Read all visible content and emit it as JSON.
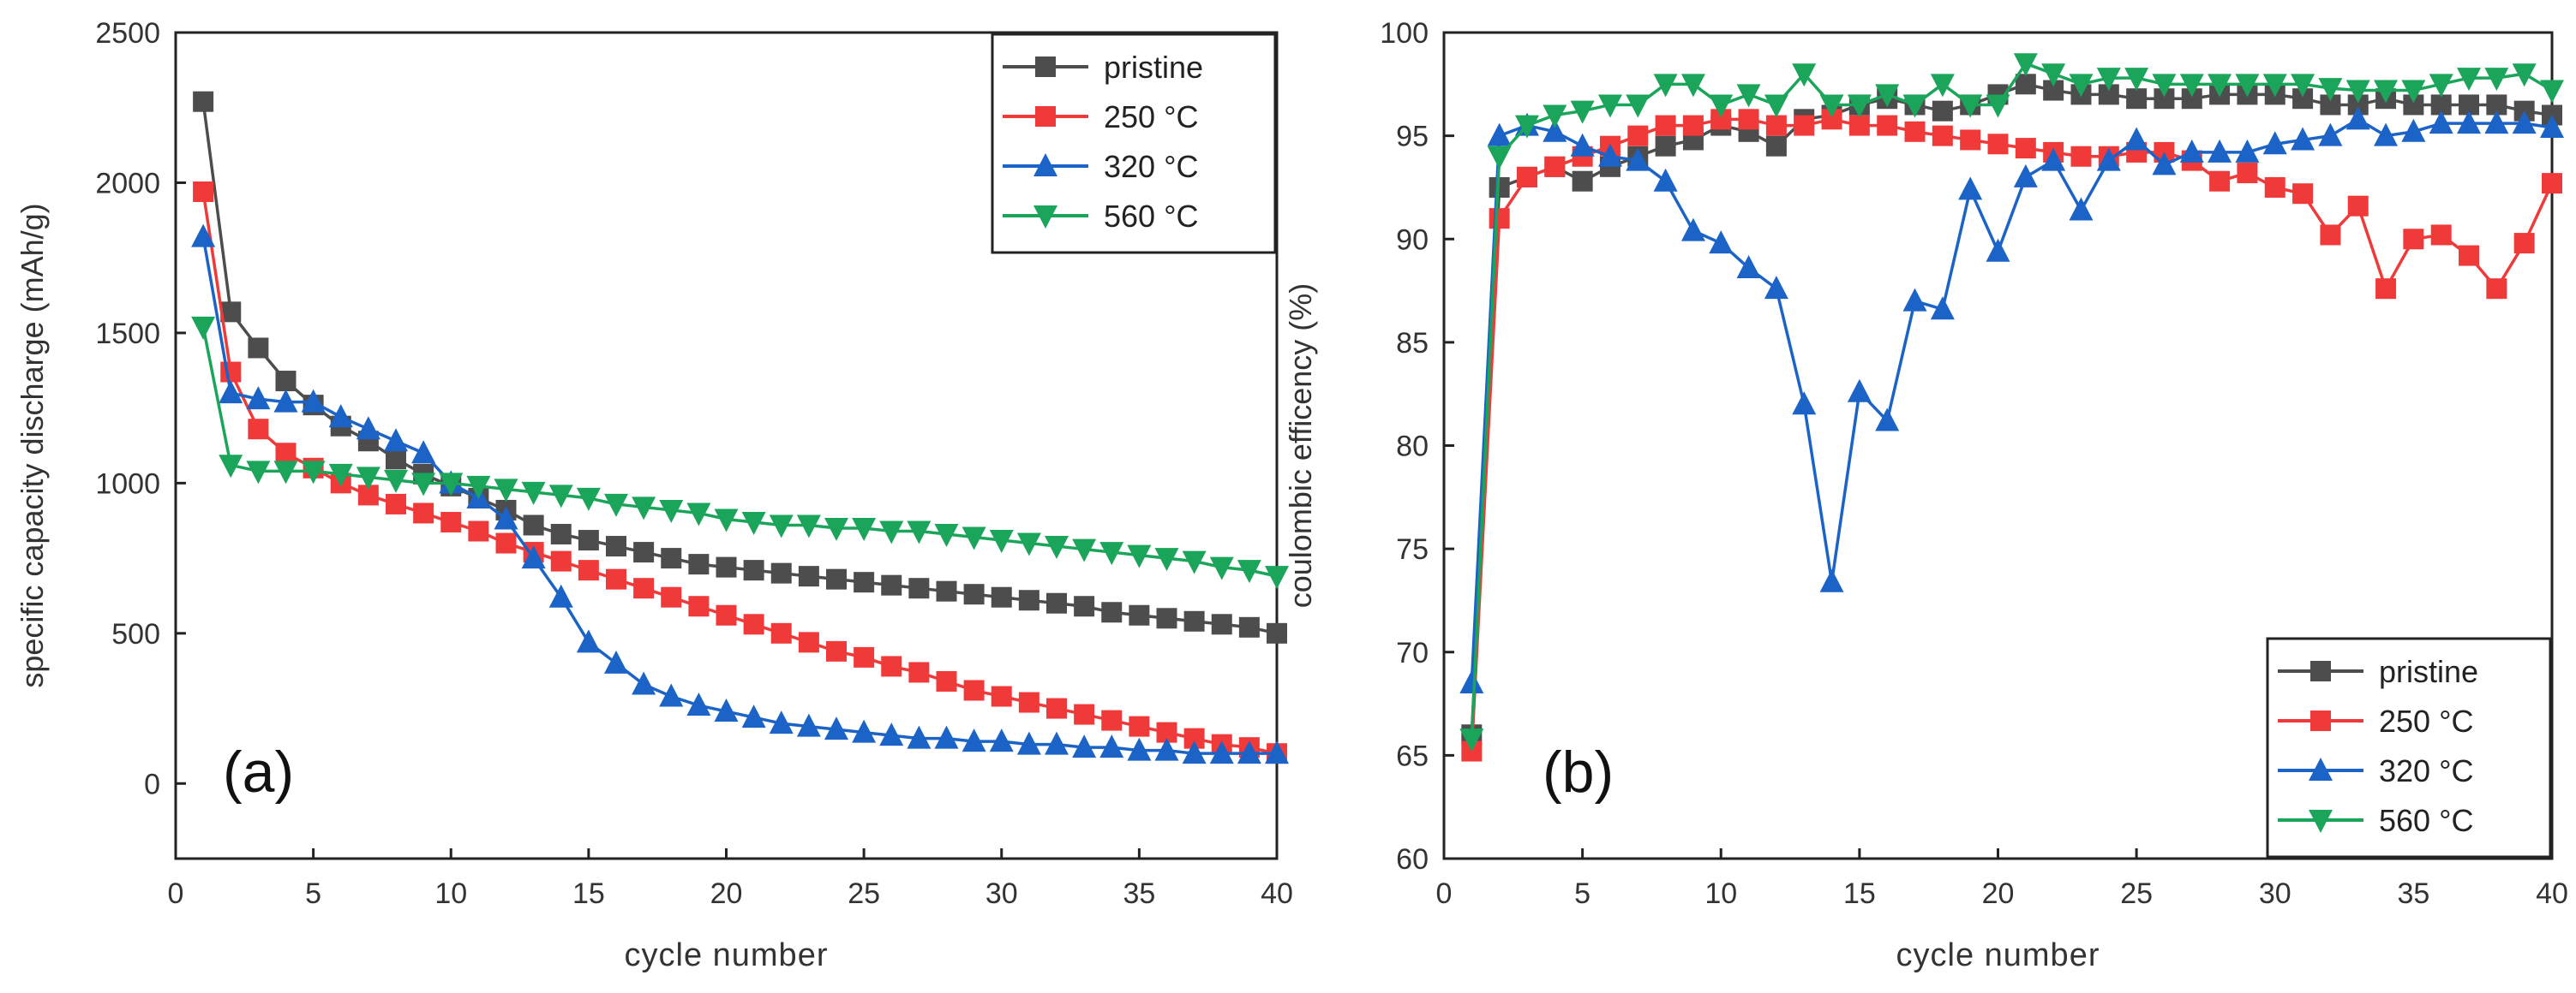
{
  "colors": {
    "pristine": "#4d4d4d",
    "c250": "#f03a3a",
    "c320": "#1c63c8",
    "c560": "#1aa55a",
    "axis": "#222222"
  },
  "chart_data": [
    {
      "type": "line",
      "panel_label": "(a)",
      "xlabel": "cycle number",
      "ylabel": "specific capacity discharge (mAh/g)",
      "xlim": [
        0,
        40
      ],
      "ylim": [
        -250,
        2500
      ],
      "xticks": [
        0,
        5,
        10,
        15,
        20,
        25,
        30,
        35,
        40
      ],
      "yticks": [
        0,
        500,
        1000,
        1500,
        2000,
        2500
      ],
      "legend_position": "top-right",
      "x": [
        1,
        2,
        3,
        4,
        5,
        6,
        7,
        8,
        9,
        10,
        11,
        12,
        13,
        14,
        15,
        16,
        17,
        18,
        19,
        20,
        21,
        22,
        23,
        24,
        25,
        26,
        27,
        28,
        29,
        30,
        31,
        32,
        33,
        34,
        35,
        36,
        37,
        38,
        39,
        40
      ],
      "series": [
        {
          "name": "pristine",
          "marker": "square",
          "color_key": "pristine",
          "values": [
            2270,
            1570,
            1450,
            1340,
            1260,
            1190,
            1140,
            1080,
            1030,
            990,
            950,
            910,
            860,
            830,
            810,
            790,
            770,
            750,
            730,
            720,
            710,
            700,
            690,
            680,
            670,
            660,
            650,
            640,
            630,
            620,
            610,
            600,
            590,
            570,
            560,
            550,
            540,
            530,
            520,
            500
          ]
        },
        {
          "name": "250 °C",
          "marker": "square",
          "color_key": "c250",
          "values": [
            1970,
            1370,
            1180,
            1100,
            1050,
            1000,
            960,
            930,
            900,
            870,
            840,
            800,
            770,
            740,
            710,
            680,
            650,
            620,
            590,
            560,
            530,
            500,
            470,
            440,
            420,
            390,
            370,
            340,
            310,
            290,
            270,
            250,
            230,
            210,
            190,
            170,
            150,
            130,
            120,
            100
          ]
        },
        {
          "name": "320 °C",
          "marker": "triangle-up",
          "color_key": "c320",
          "values": [
            1820,
            1300,
            1280,
            1270,
            1270,
            1220,
            1180,
            1140,
            1100,
            1000,
            950,
            880,
            750,
            620,
            470,
            400,
            330,
            290,
            260,
            240,
            220,
            200,
            190,
            180,
            170,
            160,
            150,
            150,
            140,
            140,
            130,
            130,
            120,
            120,
            110,
            110,
            100,
            100,
            100,
            100
          ]
        },
        {
          "name": "560 °C",
          "marker": "triangle-down",
          "color_key": "c560",
          "values": [
            1520,
            1060,
            1040,
            1040,
            1040,
            1030,
            1020,
            1010,
            1000,
            1000,
            990,
            980,
            970,
            960,
            950,
            930,
            920,
            910,
            900,
            880,
            870,
            860,
            860,
            850,
            850,
            840,
            840,
            830,
            820,
            810,
            800,
            790,
            780,
            770,
            760,
            750,
            740,
            720,
            710,
            690
          ]
        }
      ]
    },
    {
      "type": "line",
      "panel_label": "(b)",
      "xlabel": "cycle number",
      "ylabel": "coulombic efficency (%)",
      "xlim": [
        0,
        40
      ],
      "ylim": [
        60,
        100
      ],
      "xticks": [
        0,
        5,
        10,
        15,
        20,
        25,
        30,
        35,
        40
      ],
      "yticks": [
        60,
        65,
        70,
        75,
        80,
        85,
        90,
        95,
        100
      ],
      "legend_position": "bottom-right",
      "x": [
        1,
        2,
        3,
        4,
        5,
        6,
        7,
        8,
        9,
        10,
        11,
        12,
        13,
        14,
        15,
        16,
        17,
        18,
        19,
        20,
        21,
        22,
        23,
        24,
        25,
        26,
        27,
        28,
        29,
        30,
        31,
        32,
        33,
        34,
        35,
        36,
        37,
        38,
        39,
        40
      ],
      "series": [
        {
          "name": "pristine",
          "marker": "square",
          "color_key": "pristine",
          "values": [
            66,
            92.5,
            93,
            93.5,
            92.8,
            93.5,
            94,
            94.5,
            94.8,
            95.5,
            95.2,
            94.5,
            95.8,
            96,
            96.5,
            96.8,
            96.5,
            96.2,
            96.5,
            97,
            97.5,
            97.2,
            97,
            97,
            96.8,
            96.8,
            96.8,
            97,
            97,
            97,
            96.8,
            96.5,
            96.5,
            96.8,
            96.5,
            96.5,
            96.5,
            96.5,
            96.2,
            96
          ]
        },
        {
          "name": "250 °C",
          "marker": "square",
          "color_key": "c250",
          "values": [
            65.2,
            91,
            93,
            93.5,
            94,
            94.5,
            95,
            95.5,
            95.5,
            95.8,
            95.8,
            95.5,
            95.5,
            95.8,
            95.5,
            95.5,
            95.2,
            95,
            94.8,
            94.6,
            94.4,
            94.2,
            94,
            94,
            94.2,
            94.2,
            93.8,
            92.8,
            93.2,
            92.5,
            92.2,
            90.2,
            91.6,
            87.6,
            90,
            90.2,
            89.2,
            87.6,
            89.8,
            92.7
          ]
        },
        {
          "name": "320 °C",
          "marker": "triangle-up",
          "color_key": "c320",
          "values": [
            68.5,
            95,
            95.5,
            95.2,
            94.5,
            94,
            93.8,
            92.8,
            90.4,
            89.8,
            88.6,
            87.6,
            82,
            73.4,
            82.6,
            81.2,
            87,
            86.6,
            92.4,
            89.4,
            93,
            93.8,
            91.4,
            93.8,
            94.8,
            93.6,
            94.2,
            94.2,
            94.2,
            94.6,
            94.8,
            95,
            95.8,
            95,
            95.2,
            95.6,
            95.6,
            95.6,
            95.6,
            95.4
          ]
        },
        {
          "name": "560 °C",
          "marker": "triangle-down",
          "color_key": "c560",
          "values": [
            65.8,
            94,
            95.5,
            96,
            96.2,
            96.5,
            96.5,
            97.5,
            97.5,
            96.5,
            97,
            96.5,
            98,
            96.5,
            96.5,
            97,
            96.5,
            97.5,
            96.5,
            96.5,
            98.5,
            98,
            97.5,
            97.8,
            97.8,
            97.5,
            97.5,
            97.5,
            97.5,
            97.5,
            97.5,
            97.3,
            97.2,
            97.2,
            97.2,
            97.5,
            97.8,
            97.8,
            98,
            97.2
          ]
        }
      ]
    }
  ]
}
